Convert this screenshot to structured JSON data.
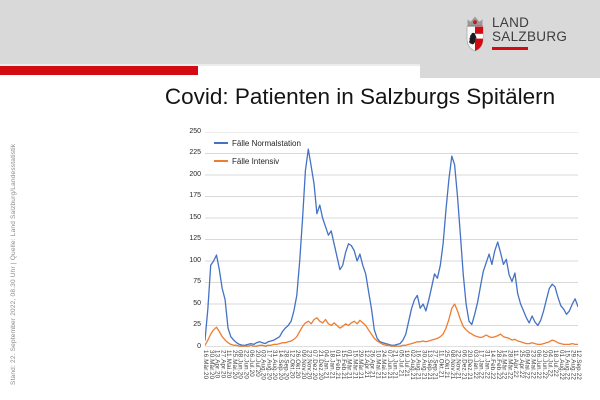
{
  "page": {
    "background": "#ffffff",
    "header_bg": "#d9d9d9",
    "accent_red": "#d20a11"
  },
  "logo": {
    "line1": "LAND",
    "line2": "SALZBURG"
  },
  "sidebar": {
    "note": "Stand: 22. September 2022, 08.30 Uhr  |  Quelle: Land Salzburg/Landesstatistik"
  },
  "title": "Covid: Patienten in Salzburgs Spitälern",
  "chart_data": {
    "type": "line",
    "title": "",
    "xlabel": "",
    "ylabel": "",
    "ylim": [
      0,
      250
    ],
    "y_ticks": [
      0,
      25,
      50,
      75,
      100,
      125,
      150,
      175,
      200,
      225,
      250
    ],
    "grid": "horizontal",
    "legend_position": "top-left-inside",
    "points_per_label": 2,
    "x_labels": [
      "16.Mär.20",
      "30.Mär.20",
      "13.Apr.20",
      "27.Apr.20",
      "11.Mai.20",
      "25.Mai.20",
      "08.Jun.20",
      "22.Jun.20",
      "06.Jul.20",
      "20.Jul.20",
      "03.Aug.20",
      "17.Aug.20",
      "31.Aug.20",
      "14.Sep.20",
      "28.Sep.20",
      "12.Okt.20",
      "26.Okt.20",
      "09.Nov.20",
      "23.Nov.20",
      "07.Dez.20",
      "21.Dez.20",
      "04.Jan.21",
      "18.Jan.21",
      "01.Feb.21",
      "15.Feb.21",
      "01.Mär.21",
      "15.Mär.21",
      "29.Mär.21",
      "12.Apr.21",
      "26.Apr.21",
      "10.Mai.21",
      "24.Mai.21",
      "07.Jun.21",
      "21.Jun.21",
      "05.Jul.21",
      "19.Jul.21",
      "02.Aug.21",
      "16.Aug.21",
      "30.Aug.21",
      "13.Sep.21",
      "27.Sep.21",
      "11.Okt.21",
      "25.Okt.21",
      "08.Nov.21",
      "22.Nov.21",
      "06.Dez.21",
      "20.Dez.21",
      "03.Jan.22",
      "17.Jan.22",
      "31.Jan.22",
      "14.Feb.22",
      "28.Feb.22",
      "14.Mär.22",
      "28.Mär.22",
      "11.Apr.22",
      "25.Apr.22",
      "09.Mai.22",
      "23.Mai.22",
      "06.Jun.22",
      "20.Jun.22",
      "04.Jul.22",
      "18.Jul.22",
      "01.Aug.22",
      "15.Aug.22",
      "29.Aug.22",
      "12.Sep.22"
    ],
    "series": [
      {
        "name": "Fälle Normalstation",
        "color": "#4472C4",
        "values": [
          8,
          45,
          95,
          100,
          107,
          90,
          68,
          55,
          22,
          12,
          8,
          5,
          3,
          2,
          2,
          3,
          4,
          3,
          5,
          6,
          5,
          4,
          6,
          7,
          8,
          10,
          12,
          18,
          22,
          25,
          30,
          42,
          60,
          100,
          150,
          205,
          230,
          210,
          190,
          155,
          165,
          150,
          140,
          130,
          135,
          120,
          105,
          90,
          95,
          110,
          120,
          118,
          112,
          100,
          108,
          95,
          85,
          65,
          45,
          20,
          10,
          6,
          5,
          4,
          3,
          2,
          2,
          3,
          4,
          8,
          15,
          30,
          45,
          55,
          60,
          45,
          50,
          42,
          55,
          70,
          85,
          80,
          95,
          120,
          160,
          195,
          222,
          212,
          175,
          130,
          85,
          50,
          30,
          26,
          38,
          52,
          70,
          88,
          98,
          108,
          96,
          112,
          122,
          110,
          96,
          102,
          84,
          76,
          86,
          62,
          50,
          42,
          34,
          28,
          36,
          29,
          25,
          31,
          42,
          55,
          68,
          73,
          70,
          58,
          48,
          44,
          38,
          42,
          50,
          56,
          47
        ]
      },
      {
        "name": "Fälle Intensiv",
        "color": "#ED7D31",
        "values": [
          2,
          8,
          15,
          20,
          23,
          18,
          12,
          8,
          5,
          3,
          2,
          2,
          1,
          1,
          1,
          1,
          2,
          1,
          1,
          2,
          2,
          1,
          2,
          2,
          3,
          3,
          4,
          5,
          5,
          6,
          7,
          9,
          12,
          18,
          24,
          28,
          30,
          27,
          32,
          34,
          30,
          28,
          32,
          27,
          25,
          28,
          25,
          22,
          24,
          27,
          25,
          28,
          30,
          27,
          31,
          28,
          25,
          20,
          15,
          10,
          7,
          5,
          3,
          2,
          2,
          1,
          1,
          1,
          1,
          2,
          2,
          3,
          4,
          5,
          6,
          6,
          7,
          6,
          7,
          8,
          9,
          10,
          12,
          15,
          22,
          32,
          45,
          50,
          42,
          32,
          24,
          20,
          17,
          15,
          13,
          12,
          11,
          12,
          14,
          12,
          11,
          12,
          13,
          15,
          12,
          11,
          10,
          8,
          9,
          7,
          6,
          5,
          4,
          4,
          5,
          4,
          3,
          3,
          4,
          5,
          6,
          8,
          7,
          5,
          4,
          3,
          3,
          3,
          4,
          3,
          3
        ]
      }
    ]
  }
}
